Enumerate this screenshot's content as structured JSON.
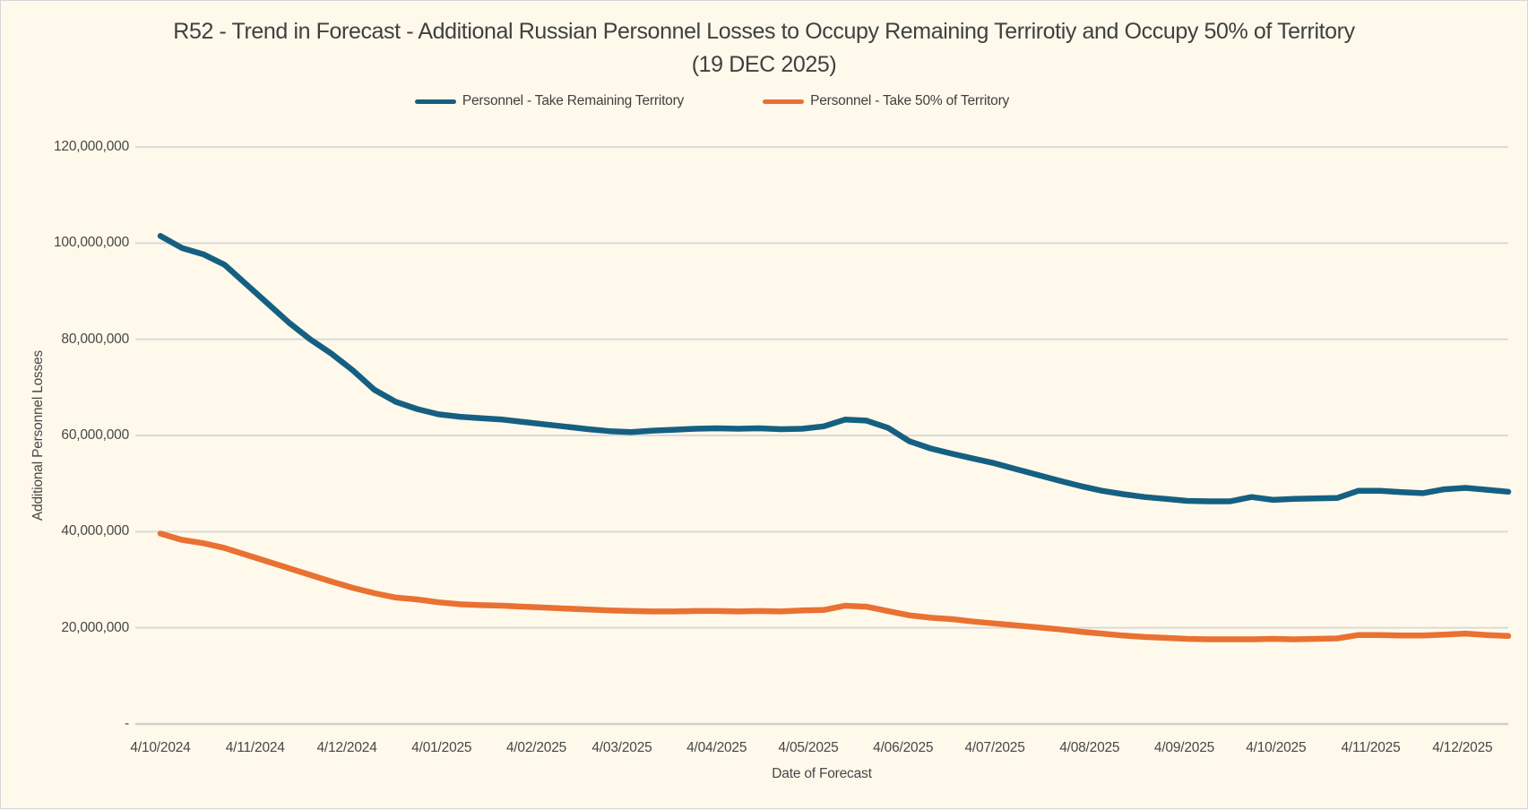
{
  "colors": {
    "background": "#FFF9EB",
    "frame_border": "#D6D6D6",
    "gridline": "#DADADA",
    "axis_line": "#CFCFCF",
    "text": "#404040",
    "tick_text": "#474747",
    "series_blue": "#156082",
    "series_orange": "#E97132"
  },
  "chart_data": {
    "type": "line",
    "title": "R52 - Trend in Forecast - Additional Russian Personnel Losses to Occupy Remaining Terrirotiy and Occupy 50% of Territory (19 DEC 2025)",
    "xlabel": "Date of Forecast",
    "ylabel": "Additional Personnel Losses",
    "ylim": [
      0,
      120000000
    ],
    "y_tick_interval": 20000000,
    "y_tick_labels_bottom_to_top": [
      "-",
      "20,000,000",
      "40,000,000",
      "60,000,000",
      "80,000,000",
      "100,000,000",
      "120,000,000"
    ],
    "x_tick_labels": [
      "4/10/2024",
      "4/11/2024",
      "4/12/2024",
      "4/01/2025",
      "4/02/2025",
      "4/03/2025",
      "4/04/2025",
      "4/05/2025",
      "4/06/2025",
      "4/07/2025",
      "4/08/2025",
      "4/09/2025",
      "4/10/2025",
      "4/11/2025",
      "4/12/2025"
    ],
    "x_sampling": "weekly",
    "legend_position": "top",
    "grid": "horizontal",
    "series": [
      {
        "name": "Personnel - Take Remaining Territory",
        "color": "#156082",
        "values": [
          101500000,
          99000000,
          97700000,
          95500000,
          91500000,
          87500000,
          83500000,
          80000000,
          77000000,
          73500000,
          69500000,
          67000000,
          65500000,
          64400000,
          63900000,
          63600000,
          63300000,
          62800000,
          62300000,
          61800000,
          61300000,
          60900000,
          60700000,
          61000000,
          61200000,
          61400000,
          61500000,
          61400000,
          61500000,
          61300000,
          61400000,
          61900000,
          63300000,
          63100000,
          61600000,
          58800000,
          57300000,
          56200000,
          55200000,
          54200000,
          53000000,
          51800000,
          50600000,
          49500000,
          48500000,
          47800000,
          47200000,
          46800000,
          46400000,
          46300000,
          46300000,
          47200000,
          46600000,
          46800000,
          46900000,
          47000000,
          48500000,
          48500000,
          48200000,
          48000000,
          48800000,
          49100000,
          48700000,
          48300000
        ]
      },
      {
        "name": "Personnel - Take 50% of Territory",
        "color": "#E97132",
        "values": [
          39600000,
          38300000,
          37600000,
          36600000,
          35200000,
          33800000,
          32400000,
          31000000,
          29600000,
          28300000,
          27200000,
          26300000,
          25900000,
          25300000,
          24900000,
          24700000,
          24600000,
          24400000,
          24200000,
          24000000,
          23800000,
          23600000,
          23500000,
          23400000,
          23400000,
          23500000,
          23500000,
          23400000,
          23500000,
          23400000,
          23600000,
          23700000,
          24600000,
          24400000,
          23500000,
          22600000,
          22100000,
          21800000,
          21300000,
          20900000,
          20500000,
          20100000,
          19700000,
          19200000,
          18800000,
          18400000,
          18100000,
          17900000,
          17700000,
          17600000,
          17600000,
          17600000,
          17700000,
          17600000,
          17700000,
          17800000,
          18500000,
          18500000,
          18400000,
          18400000,
          18600000,
          18800000,
          18500000,
          18300000
        ]
      }
    ]
  }
}
